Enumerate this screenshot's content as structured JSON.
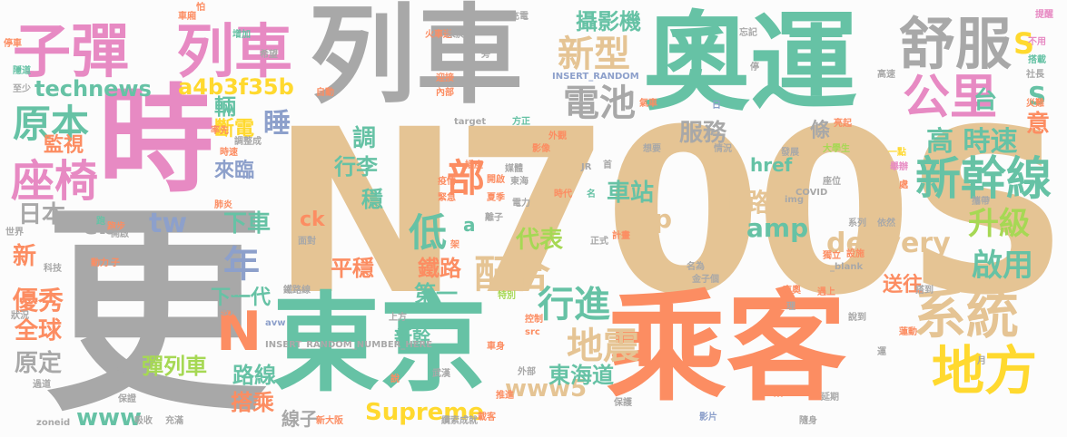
{
  "palette": {
    "gray": "#a8a8a8",
    "green": "#66c2a5",
    "orange": "#fc8d62",
    "tan": "#e5c494",
    "pink": "#e78ac3",
    "blue": "#8da0cb",
    "lime": "#a6d854",
    "yellow": "#ffd92f"
  },
  "words": [
    {
      "text": "N700S",
      "color": "tan"
    },
    {
      "text": "更",
      "color": "gray"
    },
    {
      "text": "時",
      "color": "pink"
    },
    {
      "text": "列車",
      "color": "gray"
    },
    {
      "text": "奧運",
      "color": "green"
    },
    {
      "text": "乘客",
      "color": "orange"
    },
    {
      "text": "東京",
      "color": "green"
    },
    {
      "text": "子彈",
      "color": "pink"
    },
    {
      "text": "列車",
      "color": "pink"
    },
    {
      "text": "舒服",
      "color": "gray"
    },
    {
      "text": "公里",
      "color": "pink"
    },
    {
      "text": "系統",
      "color": "tan"
    },
    {
      "text": "地方",
      "color": "yellow"
    },
    {
      "text": "新幹線",
      "color": "green"
    },
    {
      "text": "座椅",
      "color": "pink"
    },
    {
      "text": "原本",
      "color": "green"
    },
    {
      "text": "technews",
      "color": "green"
    },
    {
      "text": "新型",
      "color": "tan"
    },
    {
      "text": "電池",
      "color": "gray"
    },
    {
      "text": "配合",
      "color": "tan"
    },
    {
      "text": "行進",
      "color": "green"
    },
    {
      "text": "地震",
      "color": "tan"
    },
    {
      "text": "部",
      "color": "orange"
    },
    {
      "text": "低",
      "color": "green"
    },
    {
      "text": "年",
      "color": "blue"
    },
    {
      "text": "升級",
      "color": "lime"
    },
    {
      "text": "啟用",
      "color": "green"
    },
    {
      "text": "高 時速",
      "color": "green"
    },
    {
      "text": "delivery",
      "color": "tan"
    },
    {
      "text": "amp",
      "color": "green"
    },
    {
      "text": "php",
      "color": "tan"
    },
    {
      "text": "上路",
      "color": "tan"
    },
    {
      "text": "車站",
      "color": "green"
    },
    {
      "text": "服務",
      "color": "gray"
    },
    {
      "text": "攝影機",
      "color": "green"
    },
    {
      "text": "a4b3f35b",
      "color": "yellow"
    },
    {
      "text": "S",
      "color": "yellow"
    },
    {
      "text": "S",
      "color": "green"
    },
    {
      "text": "台",
      "color": "green"
    },
    {
      "text": "意",
      "color": "orange"
    },
    {
      "text": "睡",
      "color": "blue"
    },
    {
      "text": "輛",
      "color": "green"
    },
    {
      "text": "斷電",
      "color": "yellow"
    },
    {
      "text": "監視",
      "color": "orange"
    },
    {
      "text": "調",
      "color": "green"
    },
    {
      "text": "行李",
      "color": "green"
    },
    {
      "text": "來臨",
      "color": "blue"
    },
    {
      "text": "日本",
      "color": "gray"
    },
    {
      "text": "cb",
      "color": "gray"
    },
    {
      "text": "tw",
      "color": "blue"
    },
    {
      "text": "下車",
      "color": "green"
    },
    {
      "text": "新",
      "color": "orange"
    },
    {
      "text": "代表",
      "color": "lime"
    },
    {
      "text": "平穩",
      "color": "orange"
    },
    {
      "text": "鐵路",
      "color": "orange"
    },
    {
      "text": "第一",
      "color": "green"
    },
    {
      "text": "下一代",
      "color": "green"
    },
    {
      "text": "N",
      "color": "orange"
    },
    {
      "text": "優秀",
      "color": "orange"
    },
    {
      "text": "全球",
      "color": "orange"
    },
    {
      "text": "原定",
      "color": "gray"
    },
    {
      "text": "彈列車",
      "color": "lime"
    },
    {
      "text": "路線",
      "color": "green"
    },
    {
      "text": "搭乘",
      "color": "orange"
    },
    {
      "text": "www",
      "color": "green"
    },
    {
      "text": "Supreme",
      "color": "yellow"
    },
    {
      "text": "www5",
      "color": "tan"
    },
    {
      "text": "東海道",
      "color": "green"
    },
    {
      "text": "送往",
      "color": "orange"
    },
    {
      "text": "條",
      "color": "gray"
    },
    {
      "text": "href",
      "color": "green"
    },
    {
      "text": "新幹",
      "color": "green"
    },
    {
      "text": "線子",
      "color": "gray"
    },
    {
      "text": "穩",
      "color": "green"
    },
    {
      "text": "ck",
      "color": "orange"
    },
    {
      "text": "a",
      "color": "green"
    }
  ],
  "small_words": [
    "車廂",
    "怕",
    "充電",
    "提醒",
    "增加",
    "火車送",
    "來於",
    "停車",
    "隱道",
    "希望",
    "旁",
    "忘記",
    "不用",
    "至少",
    "停",
    "搭載",
    "迎接",
    "INSERT_RANDOM",
    "高速",
    "社長",
    "內部",
    "自動",
    "氣車",
    "災難",
    "方正",
    "target",
    "日",
    "率先",
    "調整成",
    "影像",
    "外觀",
    "情況",
    "亮起",
    "時速",
    "想要",
    "發展",
    "大學生",
    "一點",
    "插座",
    "首",
    "舉辦",
    "疫情",
    "緊急",
    "媒體",
    "JR",
    "開啟",
    "東海",
    "座位",
    "夏季",
    "處",
    "世界",
    "肺炎",
    "電力",
    "時代",
    "名",
    "img",
    "COVID",
    "攜帶",
    "跑",
    "跑步",
    "開啟",
    "離子",
    "計畫",
    "系列",
    "依然",
    "科技",
    "動力",
    "子",
    "面對",
    "架",
    "正式",
    "設施",
    "名為",
    "_blank",
    "獨立",
    "鼻",
    "鐵路線",
    "特別",
    "金子個",
    "東奧",
    "遇上",
    "搭到",
    "狀況",
    "上方",
    "控制",
    "理",
    "說到",
    "感覺",
    "avw",
    "src",
    "蓮動",
    "運",
    "INSERT_RANDOM_NUMBER_HERE",
    "設定",
    "車身",
    "月",
    "過道",
    "說",
    "外部",
    "武漢",
    "推進",
    "東",
    "延期",
    "載客",
    "新大阪",
    "保護",
    "保證",
    "影片",
    "隨身",
    "zoneid",
    "吸收",
    "充滿",
    "纜索",
    "成就",
    "商務",
    "感受"
  ]
}
